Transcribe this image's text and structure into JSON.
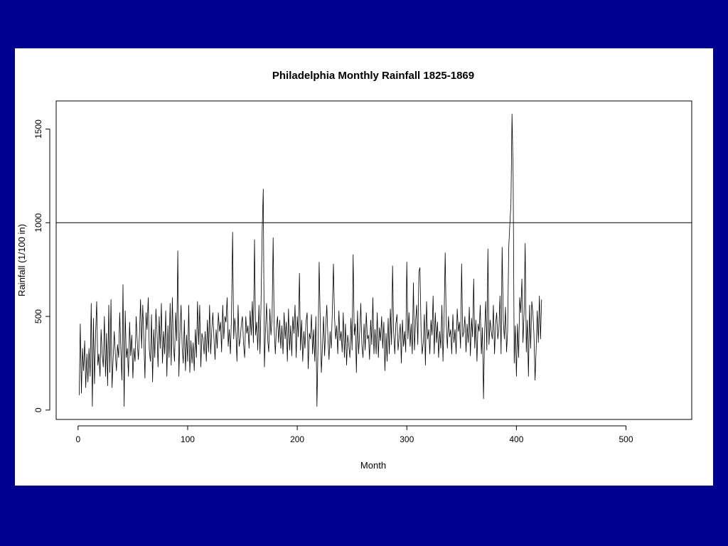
{
  "chart_data": {
    "type": "line",
    "title": "Philadelphia Monthly Rainfall 1825-1869",
    "xlabel": "Month",
    "ylabel": "Rainfall (1/100 in)",
    "xlim": [
      -20,
      560
    ],
    "ylim": [
      -50,
      1650
    ],
    "xticks": [
      "0",
      "100",
      "200",
      "300",
      "400",
      "500"
    ],
    "yticks": [
      "0",
      "500",
      "1000",
      "1500"
    ],
    "reference_line_y": 1000,
    "series_color": "#000000",
    "grid": false,
    "legend": "none",
    "series": [
      {
        "values": [
          80,
          460,
          90,
          330,
          210,
          370,
          120,
          300,
          150,
          330,
          180,
          570,
          20,
          490,
          140,
          410,
          580,
          240,
          300,
          180,
          430,
          300,
          230,
          500,
          180,
          410,
          130,
          560,
          200,
          590,
          120,
          280,
          420,
          300,
          210,
          350,
          280,
          520,
          330,
          160,
          670,
          20,
          530,
          280,
          330,
          180,
          470,
          290,
          400,
          170,
          330,
          260,
          500,
          360,
          270,
          400,
          590,
          330,
          560,
          380,
          170,
          520,
          430,
          600,
          320,
          260,
          510,
          150,
          430,
          280,
          540,
          420,
          230,
          500,
          330,
          570,
          250,
          420,
          300,
          530,
          180,
          450,
          280,
          570,
          240,
          600,
          350,
          260,
          520,
          370,
          850,
          180,
          420,
          560,
          330,
          250,
          480,
          210,
          400,
          260,
          560,
          200,
          370,
          250,
          360,
          210,
          430,
          280,
          580,
          350,
          560,
          230,
          410,
          380,
          300,
          420,
          260,
          480,
          310,
          560,
          300,
          430,
          520,
          380,
          270,
          430,
          330,
          520,
          420,
          470,
          310,
          560,
          380,
          500,
          470,
          600,
          340,
          430,
          300,
          500,
          950,
          380,
          490,
          420,
          260,
          560,
          340,
          380,
          460,
          500,
          350,
          280,
          500,
          410,
          450,
          330,
          530,
          400,
          580,
          360,
          910,
          400,
          470,
          320,
          560,
          300,
          580,
          960,
          1180,
          230,
          420,
          570,
          380,
          310,
          540,
          400,
          490,
          920,
          430,
          300,
          440,
          500,
          360,
          480,
          330,
          450,
          300,
          520,
          380,
          470,
          260,
          540,
          320,
          450,
          290,
          500,
          410,
          560,
          280,
          500,
          390,
          730,
          320,
          480,
          260,
          420,
          330,
          470,
          520,
          220,
          410,
          380,
          510,
          300,
          430,
          260,
          500,
          20,
          350,
          790,
          470,
          200,
          340,
          500,
          290,
          450,
          560,
          380,
          270,
          420,
          330,
          520,
          780,
          500,
          380,
          450,
          300,
          530,
          370,
          420,
          310,
          520,
          280,
          460,
          240,
          400,
          350,
          280,
          490,
          320,
          830,
          400,
          460,
          200,
          530,
          300,
          420,
          570,
          350,
          280,
          460,
          320,
          520,
          380,
          400,
          270,
          480,
          350,
          600,
          300,
          430,
          300,
          520,
          280,
          440,
          370,
          500,
          330,
          470,
          210,
          410,
          260,
          490,
          300,
          540,
          350,
          770,
          420,
          300,
          460,
          510,
          320,
          390,
          460,
          250,
          480,
          340,
          420,
          310,
          790,
          380,
          520,
          340,
          460,
          300,
          680,
          320,
          480,
          560,
          350,
          740,
          760,
          420,
          300,
          360,
          510,
          240,
          580,
          380,
          430,
          300,
          480,
          400,
          610,
          300,
          520,
          360,
          470,
          280,
          420,
          330,
          560,
          260,
          480,
          840,
          460,
          330,
          500,
          390,
          430,
          300,
          510,
          360,
          430,
          300,
          540,
          420,
          470,
          330,
          780,
          390,
          420,
          500,
          310,
          460,
          360,
          550,
          290,
          490,
          390,
          700,
          330,
          480,
          260,
          460,
          420,
          560,
          300,
          440,
          60,
          420,
          580,
          320,
          860,
          350,
          480,
          420,
          380,
          560,
          300,
          460,
          520,
          380,
          430,
          610,
          300,
          870,
          480,
          380,
          550,
          310,
          420,
          870,
          990,
          1100,
          1580,
          1250,
          250,
          450,
          180,
          460,
          280,
          600,
          520,
          700,
          360,
          520,
          890,
          310,
          480,
          180,
          560,
          330,
          580,
          520,
          410,
          160,
          320,
          530,
          360,
          610,
          380,
          590
        ]
      }
    ]
  }
}
